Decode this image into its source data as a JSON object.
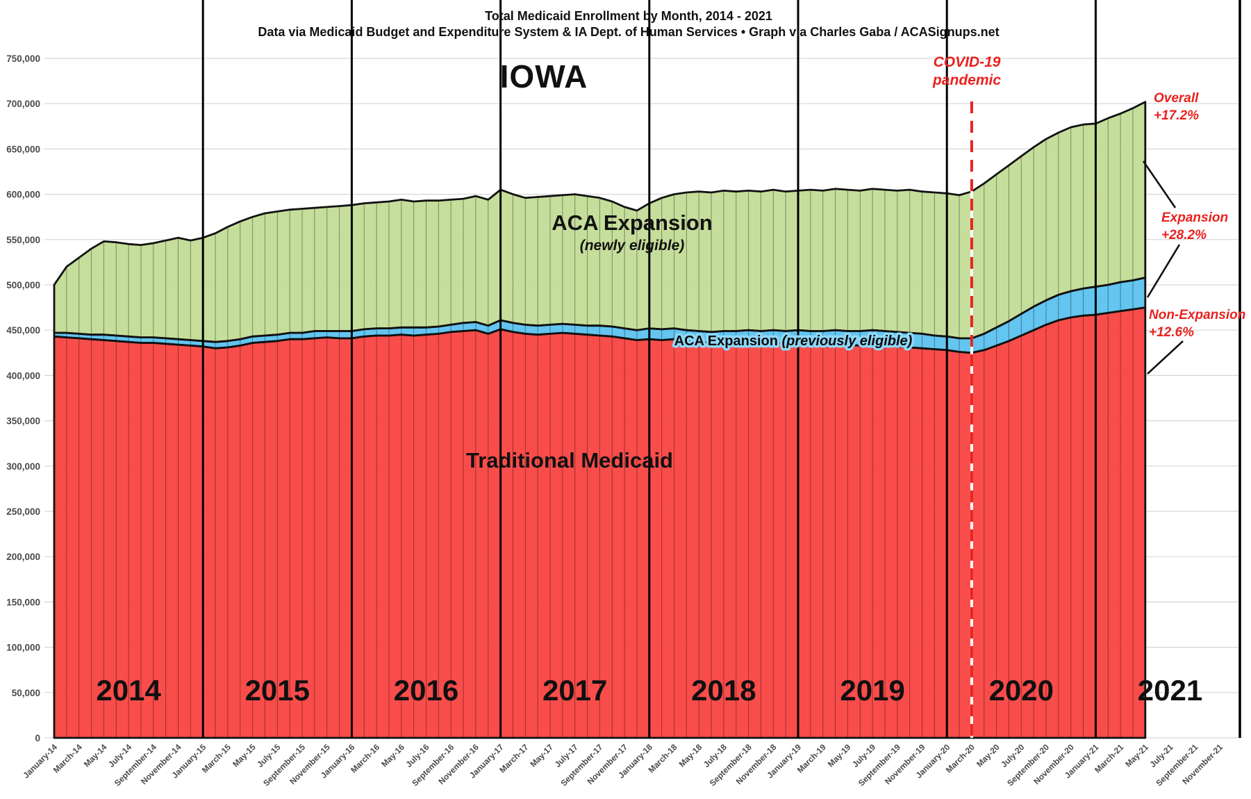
{
  "header": {
    "title_line1": "Total Medicaid Enrollment by Month, 2014 - 2021",
    "title_line2": "Data via Medicaid Budget and Expenditure System & IA Dept. of Human Services  •  Graph via Charles Gaba / ACASignups.net",
    "state_label": "IOWA"
  },
  "annotations": {
    "covid": {
      "line1": "COVID-19",
      "line2": "pandemic"
    },
    "overall": {
      "line1": "Overall",
      "line2": "+17.2%"
    },
    "expansion": {
      "line1": "Expansion",
      "line2": "+28.2%"
    },
    "non_expansion": {
      "line1": "Non-Expansion",
      "line2": "+12.6%"
    },
    "newly_area": {
      "line1": "ACA Expansion",
      "line2": "(newly eligible)"
    },
    "traditional_area": "Traditional Medicaid",
    "previously_area_prefix": "ACA Expansion ",
    "previously_area_italic": "(previously eligible)"
  },
  "chart_data": {
    "type": "area",
    "stacked": true,
    "title": "Total Medicaid Enrollment by Month, 2014 - 2021",
    "values_unit": "thousands of enrollees",
    "x_first_data_month": "January-14",
    "x_last_data_month": "May-21",
    "x_axis_last_label": "November-21",
    "covid_line_month": "March-20",
    "ylim": [
      0,
      750000
    ],
    "y_tick_step": 50000,
    "grid": true,
    "y_tick_labels": [
      "0",
      "50,000",
      "100,000",
      "150,000",
      "200,000",
      "250,000",
      "300,000",
      "350,000",
      "400,000",
      "450,000",
      "500,000",
      "550,000",
      "600,000",
      "650,000",
      "700,000",
      "750,000"
    ],
    "x_tick_labels": [
      "January-14",
      "March-14",
      "May-14",
      "July-14",
      "September-14",
      "November-14",
      "January-15",
      "March-15",
      "May-15",
      "July-15",
      "September-15",
      "November-15",
      "January-16",
      "March-16",
      "May-16",
      "July-16",
      "September-16",
      "November-16",
      "January-17",
      "March-17",
      "May-17",
      "July-17",
      "September-17",
      "November-17",
      "January-18",
      "March-18",
      "May-18",
      "July-18",
      "September-18",
      "November-18",
      "January-19",
      "March-19",
      "May-19",
      "July-19",
      "September-19",
      "November-19",
      "January-20",
      "March-20",
      "May-20",
      "July-20",
      "September-20",
      "November-20",
      "January-21",
      "March-21",
      "May-21",
      "July-21",
      "September-21",
      "November-21"
    ],
    "year_labels": [
      "2014",
      "2015",
      "2016",
      "2017",
      "2018",
      "2019",
      "2020",
      "2021"
    ],
    "series": [
      {
        "name": "Traditional Medicaid",
        "color": "#f94341",
        "values": [
          443,
          442,
          441,
          440,
          439,
          438,
          437,
          436,
          436,
          435,
          434,
          433,
          432,
          430,
          431,
          433,
          436,
          437,
          438,
          440,
          440,
          441,
          442,
          441,
          441,
          443,
          444,
          444,
          445,
          444,
          445,
          446,
          448,
          449,
          450,
          446,
          451,
          448,
          446,
          445,
          446,
          447,
          446,
          445,
          444,
          443,
          441,
          439,
          440,
          439,
          440,
          438,
          437,
          436,
          437,
          436,
          437,
          436,
          437,
          435,
          436,
          435,
          434,
          435,
          434,
          433,
          434,
          433,
          432,
          431,
          430,
          429,
          428,
          426,
          425,
          428,
          433,
          438,
          444,
          450,
          456,
          461,
          464,
          466,
          467,
          469,
          471,
          473,
          475
        ]
      },
      {
        "name": "ACA Expansion (previously eligible)",
        "color": "#5ec3f0",
        "values": [
          4,
          5,
          5,
          5,
          6,
          6,
          6,
          6,
          6,
          6,
          6,
          6,
          6,
          7,
          7,
          7,
          7,
          7,
          7,
          7,
          7,
          8,
          7,
          8,
          8,
          8,
          8,
          8,
          8,
          9,
          8,
          8,
          8,
          9,
          9,
          9,
          10,
          10,
          10,
          10,
          10,
          10,
          10,
          10,
          11,
          11,
          11,
          11,
          12,
          12,
          12,
          12,
          12,
          12,
          12,
          13,
          13,
          13,
          13,
          14,
          14,
          14,
          15,
          15,
          15,
          16,
          16,
          16,
          16,
          16,
          16,
          15,
          15,
          15,
          16,
          18,
          20,
          22,
          24,
          26,
          27,
          28,
          29,
          30,
          31,
          31,
          32,
          32,
          33
        ]
      },
      {
        "name": "ACA Expansion (newly eligible)",
        "color": "#c3dc96",
        "values": [
          53,
          73,
          84,
          95,
          103,
          103,
          102,
          102,
          104,
          108,
          112,
          110,
          114,
          120,
          126,
          130,
          132,
          135,
          136,
          136,
          137,
          136,
          137,
          138,
          139,
          139,
          139,
          140,
          141,
          139,
          140,
          139,
          138,
          137,
          139,
          139,
          144,
          142,
          140,
          142,
          142,
          142,
          144,
          143,
          141,
          138,
          134,
          132,
          138,
          145,
          148,
          152,
          154,
          154,
          155,
          154,
          154,
          154,
          155,
          154,
          154,
          156,
          155,
          156,
          156,
          155,
          156,
          156,
          156,
          158,
          157,
          158,
          158,
          158,
          162,
          166,
          169,
          172,
          174,
          176,
          178,
          179,
          181,
          181,
          180,
          184,
          186,
          190,
          194
        ]
      }
    ]
  }
}
